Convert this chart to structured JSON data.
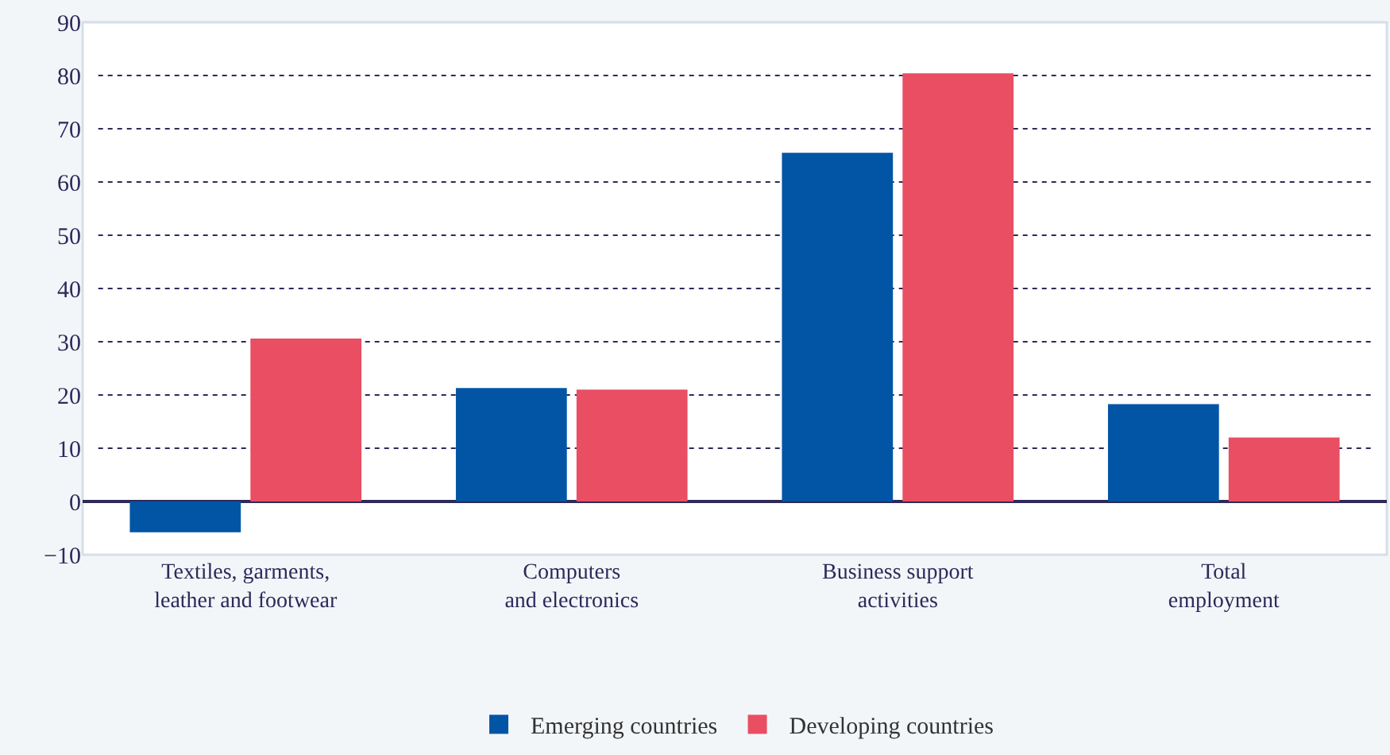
{
  "chart_data": {
    "type": "bar",
    "categories": [
      "Textiles, garments,\nleather and footwear",
      "Computers\nand electronics",
      "Business support\nactivities",
      "Total\nemployment"
    ],
    "series": [
      {
        "name": "Emerging countries",
        "color": "#0255a5",
        "values": [
          -5.8,
          21.3,
          65.5,
          18.3
        ]
      },
      {
        "name": "Developing countries",
        "color": "#e94e62",
        "values": [
          30.6,
          21.0,
          80.4,
          12.0
        ]
      }
    ],
    "ylim": [
      -10,
      90
    ],
    "yticks": [
      {
        "value": -10,
        "label": "−10"
      },
      0,
      10,
      20,
      30,
      40,
      50,
      60,
      70,
      80,
      90
    ],
    "grid": "y",
    "legend": "bottom"
  }
}
